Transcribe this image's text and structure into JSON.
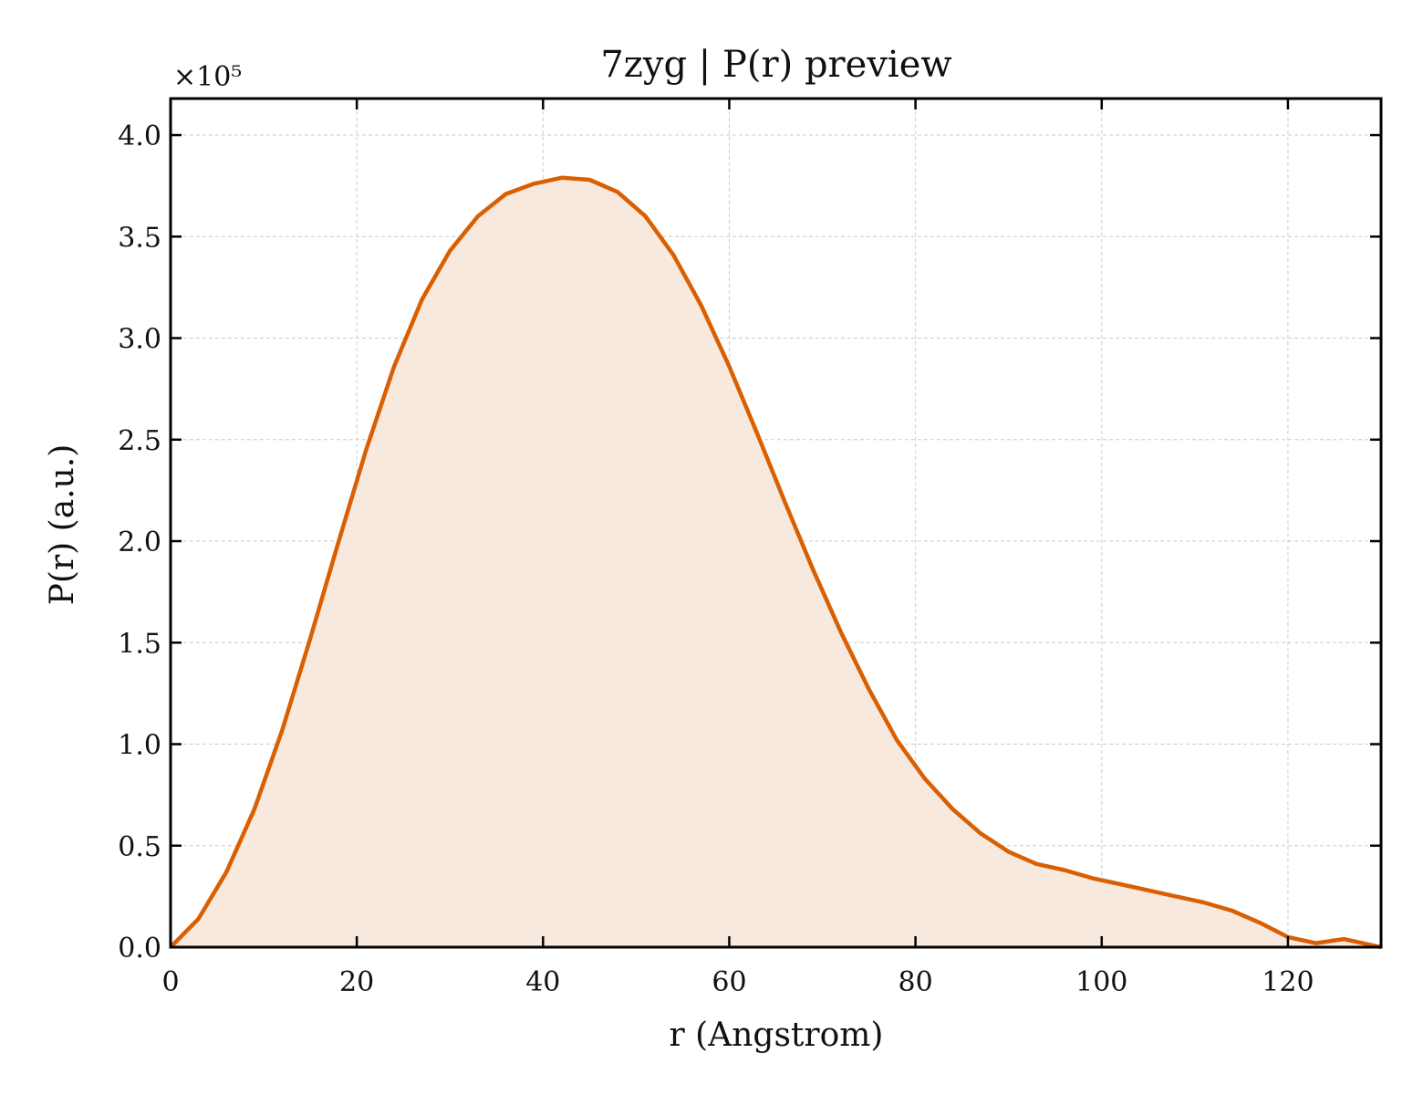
{
  "chart_data": {
    "type": "area",
    "title": "7zyg | P(r) preview",
    "xlabel": "r (Angstrom)",
    "ylabel": "P(r) (a.u.)",
    "y_multiplier_label": "×10⁵",
    "y_scale": 100000,
    "xlim": [
      0,
      130
    ],
    "ylim": [
      0,
      4.18
    ],
    "x_ticks": [
      0,
      20,
      40,
      60,
      80,
      100,
      120
    ],
    "x_tick_labels": [
      "0",
      "20",
      "40",
      "60",
      "80",
      "100",
      "120"
    ],
    "y_ticks": [
      0.0,
      0.5,
      1.0,
      1.5,
      2.0,
      2.5,
      3.0,
      3.5,
      4.0
    ],
    "y_tick_labels": [
      "0.0",
      "0.5",
      "1.0",
      "1.5",
      "2.0",
      "2.5",
      "3.0",
      "3.5",
      "4.0"
    ],
    "grid": true,
    "colors": {
      "line": "#d95f02",
      "fill": "#f8e9de",
      "grid": "#cccccc",
      "axes": "#000000"
    },
    "x": [
      0,
      3,
      6,
      9,
      12,
      15,
      18,
      21,
      24,
      27,
      30,
      33,
      36,
      39,
      42,
      45,
      48,
      51,
      54,
      57,
      60,
      63,
      66,
      69,
      72,
      75,
      78,
      81,
      84,
      87,
      90,
      93,
      96,
      99,
      102,
      105,
      108,
      111,
      114,
      117,
      120,
      123,
      126,
      129,
      130
    ],
    "y": [
      0.0,
      0.14,
      0.37,
      0.68,
      1.07,
      1.52,
      1.99,
      2.45,
      2.86,
      3.19,
      3.43,
      3.6,
      3.71,
      3.76,
      3.79,
      3.78,
      3.72,
      3.6,
      3.41,
      3.16,
      2.86,
      2.53,
      2.19,
      1.86,
      1.55,
      1.27,
      1.02,
      0.83,
      0.68,
      0.56,
      0.47,
      0.41,
      0.38,
      0.34,
      0.31,
      0.28,
      0.25,
      0.22,
      0.18,
      0.12,
      0.05,
      0.02,
      0.04,
      0.01,
      0.0
    ]
  }
}
